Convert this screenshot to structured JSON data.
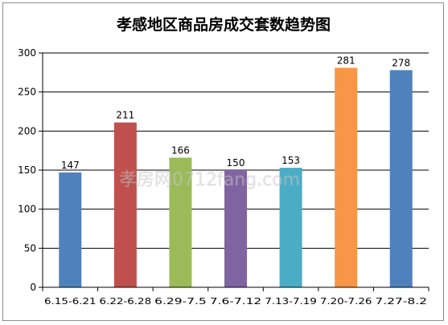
{
  "chart_data": {
    "type": "bar",
    "title": "孝感地区商品房成交套数趋势图",
    "categories": [
      "6.15-6.21",
      "6.22-6.28",
      "6.29-7.5",
      "7.6-7.12",
      "7.13-7.19",
      "7.20-7.26",
      "7.27-8.2"
    ],
    "tick_labels": [
      "6.15-6.21",
      "6.22-6.28",
      "6.29-7.5",
      "7.6-7.12",
      "7.13-7.19",
      "7.20-7.26",
      "7.27-8.2"
    ],
    "values": [
      147,
      211,
      166,
      150,
      153,
      281,
      278
    ],
    "colors": [
      "#4f81bd",
      "#c0504d",
      "#9bbb59",
      "#8064a2",
      "#4bacc6",
      "#f79646",
      "#4f81bd"
    ],
    "yticks": [
      "0",
      "50",
      "100",
      "150",
      "200",
      "250",
      "300"
    ],
    "ylim": [
      0,
      300
    ],
    "xlabel": "",
    "ylabel": "",
    "grid": true,
    "legend": "none"
  },
  "watermark": {
    "text": "孝房网0712fang.com"
  },
  "colors": {
    "grid": "#000000",
    "axis": "#000000",
    "frame": "#8c8c8c"
  }
}
